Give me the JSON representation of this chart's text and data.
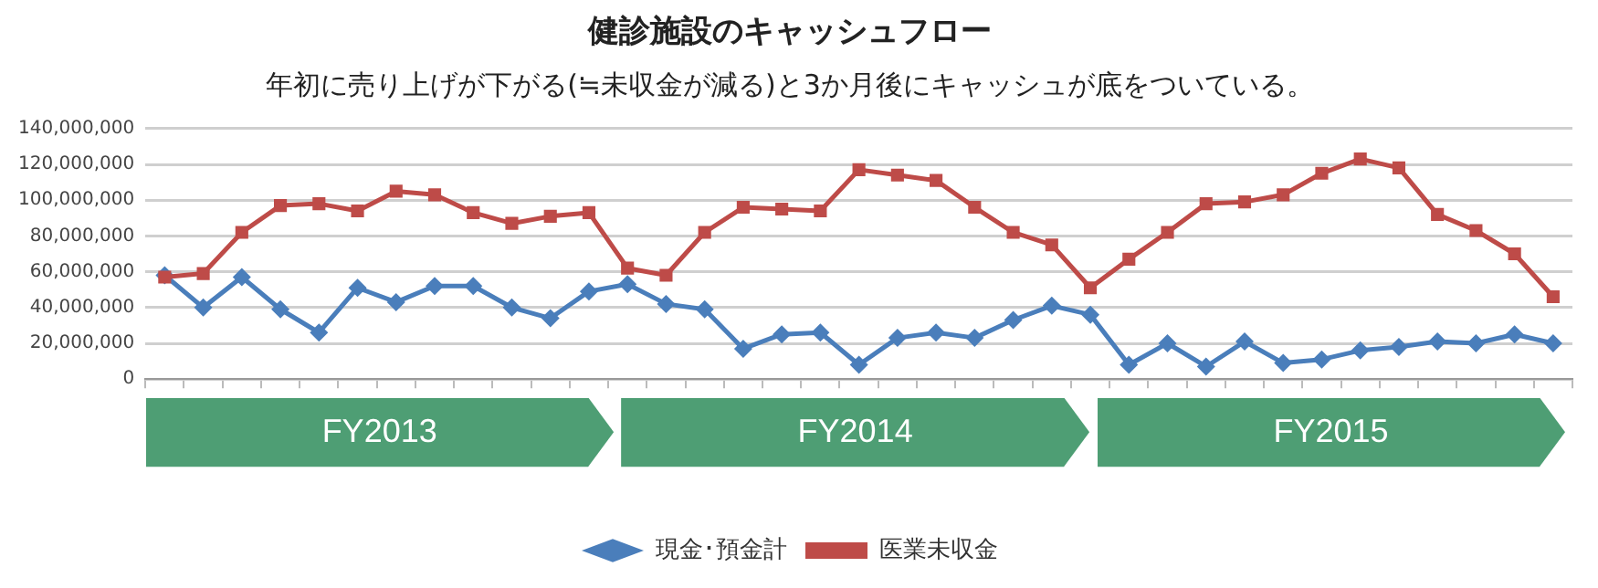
{
  "chart_data": {
    "type": "line",
    "title": "健診施設のキャッシュフロー",
    "subtitle": "年初に売り上げが下がる(≒未収金が減る)と3か月後にキャッシュが底をついている。",
    "categories": [
      null,
      null,
      null,
      null,
      null,
      null,
      null,
      null,
      null,
      null,
      null,
      null,
      null,
      null,
      null,
      null,
      null,
      null,
      null,
      null,
      null,
      null,
      null,
      null,
      null,
      null,
      null,
      null,
      null,
      null,
      null,
      null,
      null,
      null,
      null,
      null,
      null
    ],
    "series": [
      {
        "name": "現金･預金計",
        "color": "#4a7ebb",
        "marker": "diamond",
        "values": [
          58000000,
          40000000,
          57000000,
          39000000,
          26000000,
          51000000,
          43000000,
          52000000,
          52000000,
          40000000,
          34000000,
          49000000,
          53000000,
          42000000,
          39000000,
          17000000,
          25000000,
          26000000,
          8000000,
          23000000,
          26000000,
          23000000,
          33000000,
          41000000,
          36000000,
          8000000,
          20000000,
          7000000,
          21000000,
          9000000,
          11000000,
          16000000,
          18000000,
          21000000,
          20000000,
          25000000,
          20000000
        ]
      },
      {
        "name": "医業未収金",
        "color": "#be4b48",
        "marker": "square",
        "values": [
          57000000,
          59000000,
          82000000,
          97000000,
          98000000,
          94000000,
          105000000,
          103000000,
          93000000,
          87000000,
          91000000,
          93000000,
          62000000,
          58000000,
          82000000,
          96000000,
          95000000,
          94000000,
          117000000,
          114000000,
          111000000,
          96000000,
          82000000,
          75000000,
          51000000,
          67000000,
          82000000,
          98000000,
          99000000,
          103000000,
          115000000,
          123000000,
          118000000,
          92000000,
          83000000,
          70000000,
          46000000
        ]
      }
    ],
    "ylim": [
      0,
      140000000
    ],
    "yticks": [
      0,
      {
        "value": 20000000,
        "label": "20,000,000"
      },
      {
        "value": 40000000,
        "label": "40,000,000"
      },
      {
        "value": 60000000,
        "label": "60,000,000"
      },
      {
        "value": 80000000,
        "label": "80,000,000"
      },
      {
        "value": 100000000,
        "label": "100,000,000"
      },
      {
        "value": 120000000,
        "label": "120,000,000"
      },
      {
        "value": 140000000,
        "label": "140,000,000"
      }
    ],
    "grid": "y",
    "legend": "bottom",
    "line_style": "solid",
    "annotations": [
      "FY2013",
      "FY2014",
      "FY2015"
    ]
  }
}
